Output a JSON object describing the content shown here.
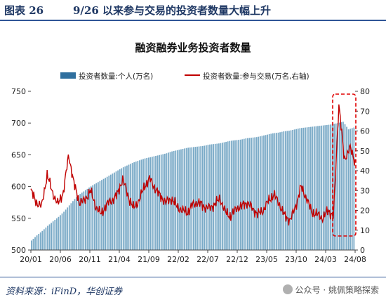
{
  "figure": {
    "number": "图表 26",
    "title": "9/26 以来参与交易的投资者数量大幅上升",
    "source": "资料来源：iFinD，华创证券",
    "watermark": "公众号 · 姚佩策略探索"
  },
  "chart_data": {
    "type": "bar",
    "title": "融资融券业务投资者数量",
    "x_tick_labels": [
      "20/01",
      "20/06",
      "20/11",
      "21/04",
      "21/09",
      "22/02",
      "22/07",
      "22/12",
      "23/05",
      "23/10",
      "24/03",
      "24/08"
    ],
    "ylim": [
      500,
      750
    ],
    "y_ticks": [
      500,
      550,
      600,
      650,
      700,
      750
    ],
    "y2lim": [
      0,
      80
    ],
    "y2_ticks": [
      0,
      10,
      20,
      30,
      40,
      50,
      60,
      70,
      80
    ],
    "legend_position": "top",
    "grid": false,
    "series": [
      {
        "name": "投资者数量:个人(万名)",
        "type": "bar",
        "axis": "left",
        "color": "#7aaac7",
        "monthly_anchor_values": [
          515,
          523,
          530,
          538,
          545,
          552,
          560,
          570,
          580,
          588,
          594,
          600,
          605,
          610,
          615,
          620,
          625,
          630,
          634,
          638,
          641,
          644,
          646,
          648,
          650,
          652,
          655,
          657,
          659,
          661,
          662,
          663,
          664,
          666,
          667,
          668,
          670,
          672,
          673,
          674,
          676,
          677,
          678,
          680,
          682,
          684,
          685,
          687,
          688,
          690,
          692,
          693,
          694,
          695,
          696,
          697,
          698,
          700,
          702,
          690,
          693
        ]
      },
      {
        "name": "投资者数量:参与交易(万名,右轴)",
        "type": "line",
        "axis": "right",
        "color": "#c00000",
        "monthly_anchor_values": [
          30,
          24,
          22,
          38,
          29,
          23,
          29,
          48,
          33,
          24,
          25,
          30,
          22,
          18,
          23,
          25,
          28,
          36,
          27,
          21,
          25,
          32,
          36,
          31,
          27,
          24,
          26,
          22,
          20,
          19,
          23,
          24,
          22,
          21,
          23,
          26,
          19,
          17,
          21,
          22,
          24,
          21,
          18,
          20,
          25,
          28,
          23,
          17,
          15,
          22,
          32,
          26,
          19,
          18,
          16,
          20,
          17,
          74,
          45,
          52,
          44
        ]
      }
    ],
    "annotation": "dashed box around the post-September 2024 surge"
  }
}
